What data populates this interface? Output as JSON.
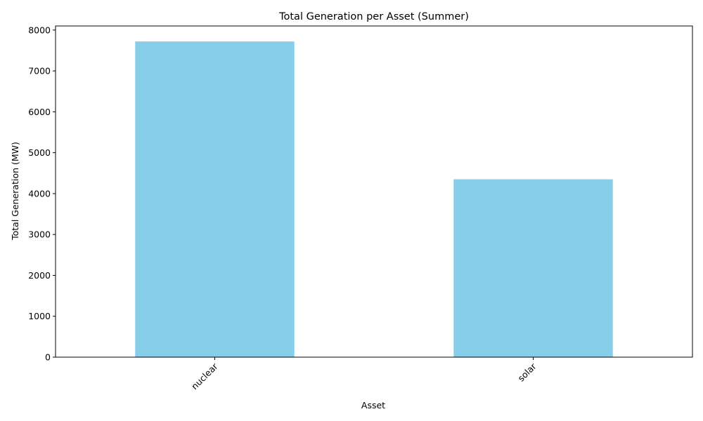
{
  "chart_data": {
    "type": "bar",
    "title": "Total Generation per Asset (Summer)",
    "xlabel": "Asset",
    "ylabel": "Total Generation (MW)",
    "categories": [
      "nuclear",
      "solar"
    ],
    "values": [
      7720,
      4350
    ],
    "ylim": [
      0,
      8100
    ],
    "yticks": [
      0,
      1000,
      2000,
      3000,
      4000,
      5000,
      6000,
      7000,
      8000
    ],
    "grid": false,
    "legend": "none",
    "bar_color": "#87CEEB",
    "x_tick_rotation_deg": 45
  }
}
